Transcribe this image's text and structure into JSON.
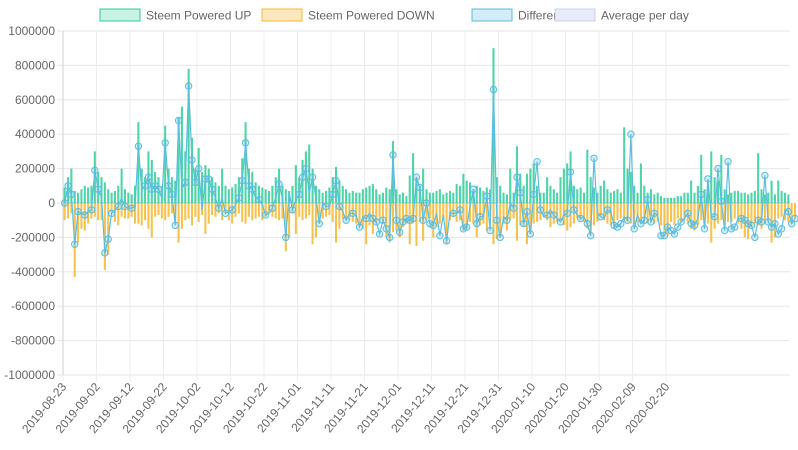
{
  "chart_data": {
    "type": "bar",
    "title": "",
    "xlabel": "",
    "ylabel": "",
    "ylim": [
      -1000000,
      1000000
    ],
    "y_ticks": [
      "1000000",
      "800000",
      "600000",
      "400000",
      "200000",
      "0",
      "-200000",
      "-400000",
      "-600000",
      "-800000",
      "-1000000"
    ],
    "x_ticks": [
      "2019-08-23",
      "2019-09-02",
      "2019-09-12",
      "2019-09-22",
      "2019-10-02",
      "2019-10-12",
      "2019-10-22",
      "2019-11-01",
      "2019-11-11",
      "2019-11-21",
      "2019-12-01",
      "2019-12-11",
      "2019-12-21",
      "2019-12-31",
      "2020-01-10",
      "2020-01-20",
      "2020-01-30",
      "2020-02-09",
      "2020-02-20"
    ],
    "grid": true,
    "legend_position": "top",
    "series": [
      {
        "name": "Steem Powered UP",
        "type": "bar",
        "border_color": "#2ecc9a",
        "fill_color": "#c8f2e2",
        "values": [
          90000,
          150000,
          200000,
          70000,
          60000,
          80000,
          100000,
          90000,
          100000,
          300000,
          180000,
          150000,
          120000,
          80000,
          60000,
          70000,
          100000,
          200000,
          80000,
          60000,
          50000,
          100000,
          470000,
          200000,
          150000,
          300000,
          250000,
          180000,
          150000,
          100000,
          450000,
          200000,
          150000,
          130000,
          500000,
          560000,
          300000,
          780000,
          380000,
          200000,
          320000,
          180000,
          220000,
          200000,
          150000,
          120000,
          100000,
          200000,
          100000,
          80000,
          90000,
          110000,
          150000,
          260000,
          470000,
          200000,
          180000,
          120000,
          100000,
          90000,
          80000,
          70000,
          100000,
          150000,
          200000,
          100000,
          80000,
          70000,
          100000,
          220000,
          150000,
          250000,
          300000,
          340000,
          200000,
          100000,
          80000,
          60000,
          70000,
          90000,
          150000,
          210000,
          130000,
          100000,
          80000,
          60000,
          70000,
          60000,
          60000,
          80000,
          90000,
          100000,
          110000,
          80000,
          50000,
          60000,
          90000,
          80000,
          360000,
          80000,
          50000,
          60000,
          40000,
          160000,
          290000,
          150000,
          100000,
          200000,
          80000,
          60000,
          60000,
          70000,
          80000,
          50000,
          60000,
          70000,
          60000,
          110000,
          100000,
          170000,
          130000,
          120000,
          80000,
          100000,
          90000,
          70000,
          90000,
          80000,
          900000,
          150000,
          100000,
          60000,
          50000,
          200000,
          60000,
          330000,
          170000,
          100000,
          170000,
          200000,
          230000,
          100000,
          60000,
          60000,
          150000,
          100000,
          80000,
          60000,
          150000,
          200000,
          230000,
          300000,
          100000,
          80000,
          90000,
          60000,
          310000,
          150000,
          90000,
          60000,
          100000,
          130000,
          80000,
          60000,
          70000,
          80000,
          60000,
          440000,
          200000,
          180000,
          100000,
          60000,
          230000,
          100000,
          60000,
          80000,
          50000,
          60000,
          40000,
          30000,
          30000,
          30000,
          30000,
          40000,
          40000,
          60000,
          60000,
          130000,
          60000,
          100000,
          280000,
          80000,
          100000,
          300000,
          150000,
          130000,
          280000,
          80000,
          50000,
          60000,
          70000,
          70000,
          60000,
          60000,
          50000,
          60000,
          70000,
          290000,
          80000,
          50000,
          60000,
          130000,
          50000,
          130000,
          70000,
          60000,
          50000
        ],
        "_note": "values read approximately from chart"
      },
      {
        "name": "Steem Powered DOWN",
        "type": "bar",
        "border_color": "#f5b730",
        "fill_color": "#fde7bf",
        "values": [
          -100000,
          -90000,
          -60000,
          -430000,
          -230000,
          -150000,
          -160000,
          -120000,
          -90000,
          -80000,
          -100000,
          -100000,
          -390000,
          -300000,
          -60000,
          -110000,
          -130000,
          -80000,
          -90000,
          -90000,
          -80000,
          -120000,
          -120000,
          -130000,
          -100000,
          -150000,
          -200000,
          -80000,
          -70000,
          -90000,
          -100000,
          -80000,
          -60000,
          -90000,
          -230000,
          -150000,
          -100000,
          -90000,
          -130000,
          -80000,
          -110000,
          -70000,
          -180000,
          -120000,
          -70000,
          -80000,
          -60000,
          -100000,
          -60000,
          -100000,
          -120000,
          -80000,
          -60000,
          -110000,
          -120000,
          -80000,
          -100000,
          -90000,
          -80000,
          -100000,
          -80000,
          -60000,
          -80000,
          -90000,
          -100000,
          -90000,
          -280000,
          -200000,
          -60000,
          -180000,
          -80000,
          -100000,
          -90000,
          -70000,
          -240000,
          -200000,
          -120000,
          -90000,
          -80000,
          -70000,
          -110000,
          -230000,
          -150000,
          -90000,
          -80000,
          -100000,
          -110000,
          -120000,
          -130000,
          -150000,
          -240000,
          -130000,
          -180000,
          -120000,
          -100000,
          -110000,
          -200000,
          -230000,
          -170000,
          -160000,
          -200000,
          -140000,
          -120000,
          -240000,
          -120000,
          -250000,
          -110000,
          -220000,
          -100000,
          -90000,
          -200000,
          -140000,
          -120000,
          -90000,
          -240000,
          -100000,
          -80000,
          -110000,
          -100000,
          -160000,
          -150000,
          -110000,
          -120000,
          -200000,
          -130000,
          -120000,
          -160000,
          -80000,
          -240000,
          -210000,
          -200000,
          -120000,
          -160000,
          -100000,
          -90000,
          -220000,
          -130000,
          -140000,
          -240000,
          -180000,
          -120000,
          -110000,
          -100000,
          -80000,
          -100000,
          -140000,
          -120000,
          -110000,
          -100000,
          -130000,
          -160000,
          -140000,
          -120000,
          -90000,
          -100000,
          -110000,
          -150000,
          -170000,
          -130000,
          -110000,
          -80000,
          -100000,
          -120000,
          -130000,
          -150000,
          -100000,
          -90000,
          -110000,
          -110000,
          -120000,
          -140000,
          -110000,
          -100000,
          -120000,
          -120000,
          -100000,
          -120000,
          -110000,
          -130000,
          -170000,
          -190000,
          -110000,
          -130000,
          -90000,
          -110000,
          -100000,
          -120000,
          -150000,
          -160000,
          -130000,
          -100000,
          -140000,
          -120000,
          -230000,
          -150000,
          -120000,
          -100000,
          -130000,
          -110000,
          -110000,
          -90000,
          -120000,
          -150000,
          -200000,
          -210000,
          -140000,
          -120000,
          -130000,
          -150000,
          -120000,
          -110000,
          -230000,
          -200000,
          -90000,
          -80000,
          -100000,
          -110000,
          -120000,
          -90000
        ]
      },
      {
        "name": "Difference",
        "type": "line",
        "border_color": "#5bbde0",
        "fill_color": "#d3ecf8",
        "values": [
          0,
          100000,
          50000,
          -240000,
          -50000,
          -60000,
          -70000,
          -50000,
          -40000,
          190000,
          80000,
          30000,
          -290000,
          -210000,
          -60000,
          -40000,
          -20000,
          30000,
          -20000,
          -30000,
          -30000,
          -20000,
          330000,
          80000,
          100000,
          150000,
          80000,
          100000,
          80000,
          30000,
          350000,
          100000,
          50000,
          -130000,
          480000,
          80000,
          120000,
          680000,
          250000,
          120000,
          200000,
          -40000,
          140000,
          140000,
          80000,
          30000,
          -30000,
          30000,
          -60000,
          -50000,
          -40000,
          -10000,
          30000,
          130000,
          350000,
          100000,
          80000,
          30000,
          20000,
          -10000,
          -70000,
          -60000,
          -30000,
          30000,
          110000,
          30000,
          -200000,
          60000,
          -40000,
          20000,
          50000,
          150000,
          200000,
          60000,
          150000,
          30000,
          -120000,
          0,
          -20000,
          -20000,
          50000,
          130000,
          -20000,
          -50000,
          -100000,
          -60000,
          -60000,
          -70000,
          -140000,
          -80000,
          -90000,
          -60000,
          -90000,
          -110000,
          -180000,
          -100000,
          -150000,
          -200000,
          280000,
          -100000,
          -170000,
          -110000,
          -90000,
          -100000,
          -90000,
          150000,
          90000,
          -100000,
          0,
          -120000,
          -130000,
          -60000,
          -190000,
          -70000,
          -220000,
          -60000,
          -60000,
          -60000,
          -40000,
          -150000,
          -140000,
          -20000,
          80000,
          -120000,
          -80000,
          -80000,
          40000,
          -160000,
          660000,
          -100000,
          -200000,
          -80000,
          -100000,
          0,
          -30000,
          150000,
          60000,
          -120000,
          -50000,
          -180000,
          50000,
          240000,
          -40000,
          -80000,
          -70000,
          -40000,
          -70000,
          -90000,
          -110000,
          -70000,
          -60000,
          180000,
          -40000,
          -70000,
          -90000,
          -80000,
          -120000,
          -190000,
          260000,
          -60000,
          -80000,
          -90000,
          -40000,
          -50000,
          -130000,
          -140000,
          -120000,
          -80000,
          -100000,
          400000,
          -150000,
          -70000,
          -120000,
          -100000,
          20000,
          -110000,
          -60000,
          -70000,
          -190000,
          -190000,
          -140000,
          -160000,
          -180000,
          -140000,
          -110000,
          -90000,
          -60000,
          -120000,
          -130000,
          -90000,
          50000,
          -150000,
          140000,
          -80000,
          -80000,
          200000,
          10000,
          -160000,
          240000,
          -150000,
          -140000,
          -90000,
          -90000,
          -100000,
          -120000,
          -130000,
          -200000,
          -100000,
          -110000,
          160000,
          -110000,
          -140000,
          -120000,
          -180000,
          -150000,
          -40000,
          -50000,
          -120000,
          -90000
        ]
      },
      {
        "name": "Average per day",
        "type": "line",
        "border_color": "#c9d2f0",
        "fill_color": "#e8ebf8",
        "values": []
      }
    ]
  }
}
